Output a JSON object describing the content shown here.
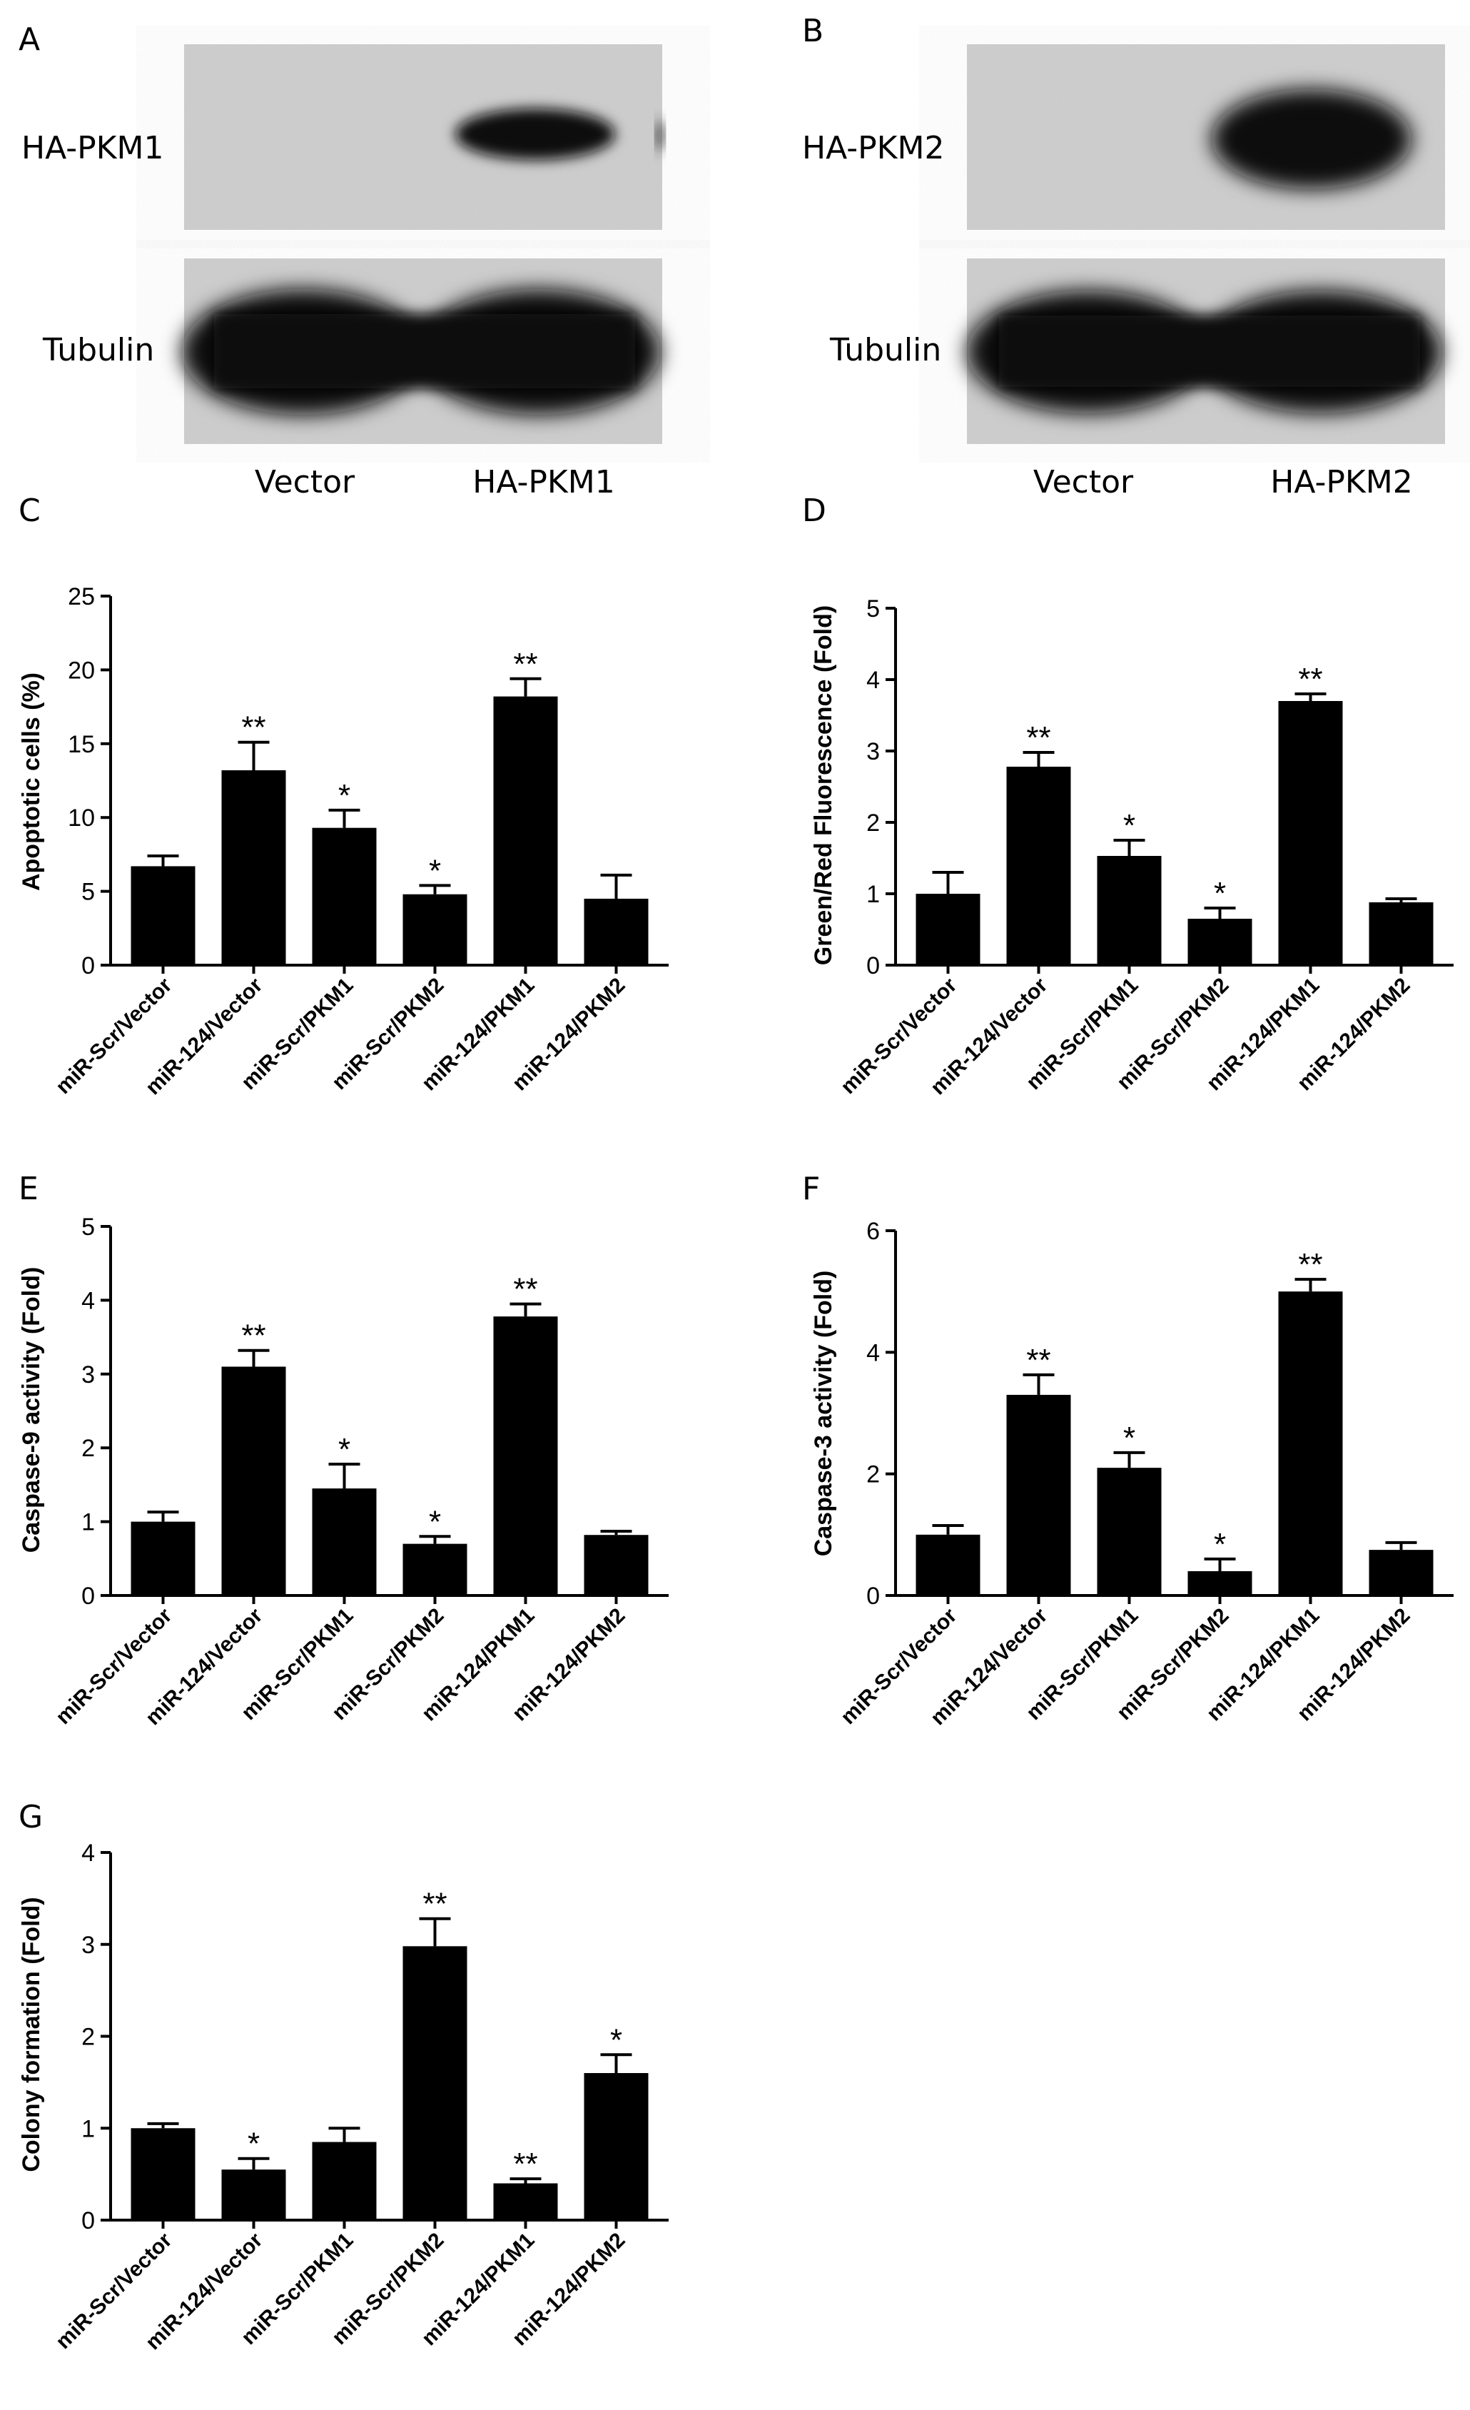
{
  "blots": [
    {
      "panel": "A",
      "rows": [
        "HA-PKM1",
        "Tubulin"
      ],
      "lanes": [
        "Vector",
        "HA-PKM1"
      ]
    },
    {
      "panel": "B",
      "rows": [
        "HA-PKM2",
        "Tubulin"
      ],
      "lanes": [
        "Vector",
        "HA-PKM2"
      ]
    }
  ],
  "chart_data": [
    {
      "panel": "C",
      "type": "bar",
      "categories": [
        "miR-Scr/Vector",
        "miR-124/Vector",
        "miR-Scr/PKM1",
        "miR-Scr/PKM2",
        "miR-124/PKM1",
        "miR-124/PKM2"
      ],
      "values": [
        6.7,
        13.2,
        9.3,
        4.8,
        18.2,
        4.5
      ],
      "errors": [
        0.7,
        1.9,
        1.2,
        0.6,
        1.2,
        1.6
      ],
      "significance": [
        "",
        "**",
        "*",
        "*",
        "**",
        ""
      ],
      "ylabel": "Apoptotic cells (%)",
      "ylim": [
        0,
        25
      ],
      "yticks": [
        0,
        5,
        10,
        15,
        20,
        25
      ],
      "ytick_labels": [
        "0",
        "5",
        "10",
        "15",
        "20",
        "25"
      ]
    },
    {
      "panel": "D",
      "type": "bar",
      "categories": [
        "miR-Scr/Vector",
        "miR-124/Vector",
        "miR-Scr/PKM1",
        "miR-Scr/PKM2",
        "miR-124/PKM1",
        "miR-124/PKM2"
      ],
      "values": [
        1.0,
        2.78,
        1.53,
        0.65,
        3.7,
        0.88
      ],
      "errors": [
        0.3,
        0.2,
        0.22,
        0.15,
        0.1,
        0.05
      ],
      "significance": [
        "",
        "**",
        "*",
        "*",
        "**",
        ""
      ],
      "ylabel": "Green/Red Fluorescence (Fold)",
      "ylim": [
        0,
        5
      ],
      "yticks": [
        0,
        1,
        2,
        3,
        4,
        5
      ],
      "ytick_labels": [
        "0",
        "1",
        "2",
        "3",
        "4",
        "5"
      ]
    },
    {
      "panel": "E",
      "type": "bar",
      "categories": [
        "miR-Scr/Vector",
        "miR-124/Vector",
        "miR-Scr/PKM1",
        "miR-Scr/PKM2",
        "miR-124/PKM1",
        "miR-124/PKM2"
      ],
      "values": [
        1.0,
        3.1,
        1.45,
        0.7,
        3.78,
        0.82
      ],
      "errors": [
        0.13,
        0.22,
        0.33,
        0.1,
        0.17,
        0.05
      ],
      "significance": [
        "",
        "**",
        "*",
        "*",
        "**",
        ""
      ],
      "ylabel": "Caspase-9 activity (Fold)",
      "ylim": [
        0,
        5
      ],
      "yticks": [
        0,
        1,
        2,
        3,
        4,
        5
      ],
      "ytick_labels": [
        "0",
        "1",
        "2",
        "3",
        "4",
        "5"
      ]
    },
    {
      "panel": "F",
      "type": "bar",
      "categories": [
        "miR-Scr/Vector",
        "miR-124/Vector",
        "miR-Scr/PKM1",
        "miR-Scr/PKM2",
        "miR-124/PKM1",
        "miR-124/PKM2"
      ],
      "values": [
        1.0,
        3.3,
        2.1,
        0.4,
        5.0,
        0.75
      ],
      "errors": [
        0.15,
        0.33,
        0.25,
        0.2,
        0.2,
        0.12
      ],
      "significance": [
        "",
        "**",
        "*",
        "*",
        "**",
        ""
      ],
      "ylabel": "Caspase-3 activity (Fold)",
      "ylim": [
        0,
        6
      ],
      "yticks": [
        0,
        2,
        4,
        6
      ],
      "ytick_labels": [
        "0",
        "2",
        "4",
        "6"
      ]
    },
    {
      "panel": "G",
      "type": "bar",
      "categories": [
        "miR-Scr/Vector",
        "miR-124/Vector",
        "miR-Scr/PKM1",
        "miR-Scr/PKM2",
        "miR-124/PKM1",
        "miR-124/PKM2"
      ],
      "values": [
        1.0,
        0.55,
        0.85,
        2.98,
        0.4,
        1.6
      ],
      "errors": [
        0.05,
        0.12,
        0.15,
        0.3,
        0.05,
        0.2
      ],
      "significance": [
        "",
        "*",
        "",
        "**",
        "**",
        "*"
      ],
      "ylabel": "Colony formation (Fold)",
      "ylim": [
        0,
        4
      ],
      "yticks": [
        0,
        1,
        2,
        3,
        4
      ],
      "ytick_labels": [
        "0",
        "1",
        "2",
        "3",
        "4"
      ]
    }
  ],
  "colors": {
    "bar": "#000000",
    "axis": "#000000",
    "blot_bg": "#cfcfcf",
    "band": "#0e0e0e"
  }
}
